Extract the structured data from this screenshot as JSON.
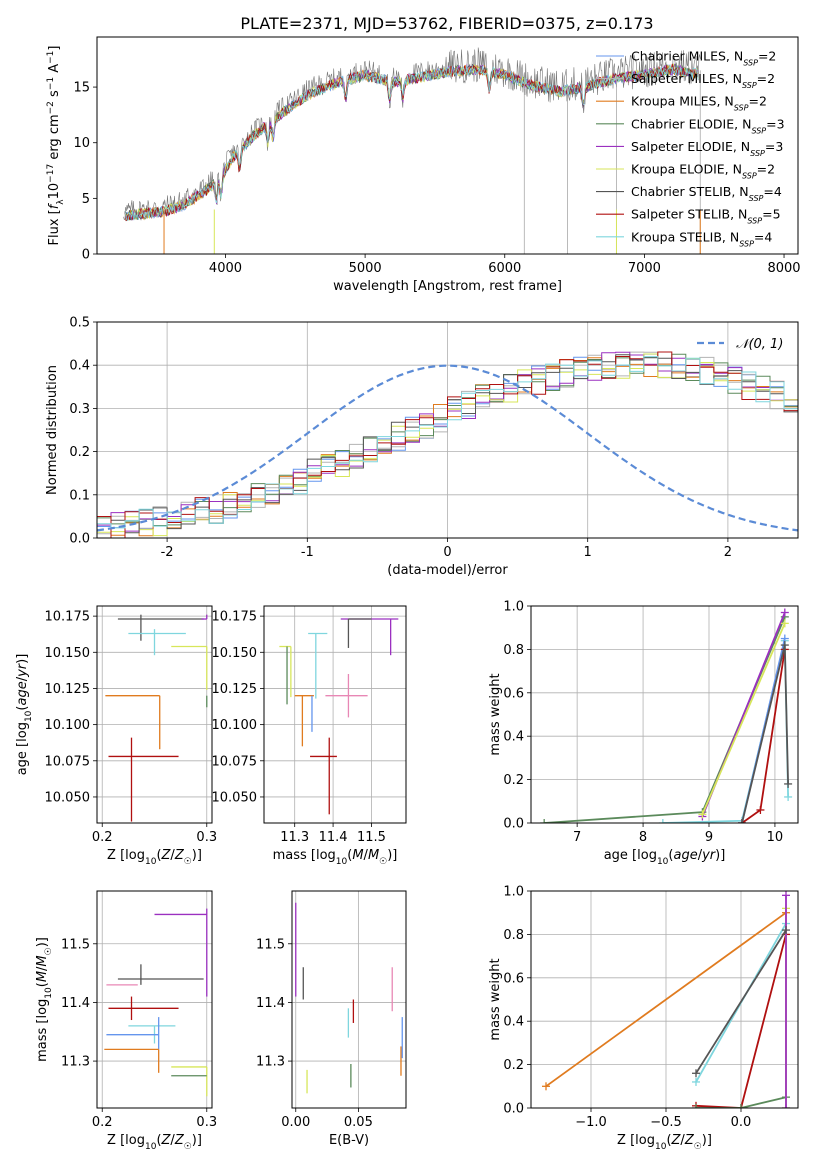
{
  "figure": {
    "title": "PLATE=2371, MJD=53762, FIBERID=0375, z=0.173"
  },
  "model_colors": {
    "Chabrier MILES": "#6495ed",
    "Salpeter MILES": "#b3b3b3",
    "Kroupa MILES": "#e07b1f",
    "Chabrier ELODIE": "#5b8a5b",
    "Salpeter ELODIE": "#9b30c0",
    "Kroupa ELODIE": "#d7e65a",
    "Chabrier STELIB": "#555555",
    "Salpeter STELIB": "#b01010",
    "Kroupa STELIB": "#7fd6de",
    "pink_extra": "#e887b5",
    "normal_curve": "#5b8bd6"
  },
  "chart_data": [
    {
      "id": "spectrum",
      "type": "line",
      "xlabel": "wavelength [Angstrom, rest frame]",
      "ylabel": "Flux [f_λ 10^-17 erg cm^-2 s^-1 A^-1]",
      "xlim": [
        3080,
        8100
      ],
      "ylim": [
        0,
        19.5
      ],
      "xticks": [
        4000,
        5000,
        6000,
        7000,
        8000
      ],
      "yticks": [
        0,
        5,
        10,
        15
      ],
      "grid": false,
      "legend_position": "upper-right",
      "continuum_points": {
        "x": [
          3270,
          3400,
          3550,
          3700,
          3850,
          3950,
          4050,
          4200,
          4400,
          4600,
          4800,
          5000,
          5200,
          5400,
          5600,
          5800,
          6000,
          6200,
          6400,
          6600,
          6800,
          7000,
          7200,
          7400
        ],
        "y": [
          3.8,
          4.0,
          4.2,
          4.8,
          6.0,
          7.0,
          9.0,
          11.0,
          13.0,
          14.8,
          15.8,
          16.5,
          15.8,
          16.3,
          16.8,
          17.0,
          16.5,
          15.5,
          15.0,
          15.5,
          16.2,
          16.5,
          17.0,
          16.5
        ]
      },
      "series": [
        {
          "name": "Chabrier MILES, N_SSP=2",
          "color_key": "Chabrier MILES"
        },
        {
          "name": "Salpeter MILES, N_SSP=2",
          "color_key": "Salpeter MILES"
        },
        {
          "name": "Kroupa MILES, N_SSP=2",
          "color_key": "Kroupa MILES"
        },
        {
          "name": "Chabrier ELODIE, N_SSP=3",
          "color_key": "Chabrier ELODIE"
        },
        {
          "name": "Salpeter ELODIE, N_SSP=3",
          "color_key": "Salpeter ELODIE"
        },
        {
          "name": "Kroupa ELODIE, N_SSP=2",
          "color_key": "Kroupa ELODIE"
        },
        {
          "name": "Chabrier STELIB, N_SSP=4",
          "color_key": "Chabrier STELIB"
        },
        {
          "name": "Salpeter STELIB, N_SSP=5",
          "color_key": "Salpeter STELIB"
        },
        {
          "name": "Kroupa STELIB, N_SSP=4",
          "color_key": "Kroupa STELIB"
        }
      ],
      "vertical_lines_x": [
        6140,
        6450,
        6800,
        7400
      ]
    },
    {
      "id": "residuals",
      "type": "histogram",
      "xlabel": "(data-model)/error",
      "ylabel": "Normed distribution",
      "xlim": [
        -2.5,
        2.5
      ],
      "ylim": [
        0,
        0.5
      ],
      "xticks": [
        -2,
        -1,
        0,
        1,
        2
      ],
      "yticks": [
        0.0,
        0.1,
        0.2,
        0.3,
        0.4,
        0.5
      ],
      "grid": true,
      "legend": [
        "𝒩(0, 1)"
      ],
      "legend_position": "upper-right",
      "normal_curve": {
        "mean": 0,
        "sigma": 1
      },
      "bin_width": 0.1,
      "bin_start": -2.5,
      "base_shape": [
        0.02,
        0.03,
        0.03,
        0.035,
        0.04,
        0.045,
        0.05,
        0.06,
        0.065,
        0.075,
        0.085,
        0.095,
        0.11,
        0.12,
        0.135,
        0.15,
        0.16,
        0.175,
        0.19,
        0.205,
        0.22,
        0.235,
        0.25,
        0.265,
        0.28,
        0.295,
        0.31,
        0.325,
        0.335,
        0.345,
        0.355,
        0.365,
        0.375,
        0.38,
        0.385,
        0.39,
        0.395,
        0.4,
        0.405,
        0.405,
        0.4,
        0.395,
        0.39,
        0.385,
        0.375,
        0.365,
        0.355,
        0.345,
        0.33,
        0.32,
        0.31,
        0.3,
        0.29,
        0.28,
        0.265,
        0.25,
        0.235,
        0.22,
        0.205,
        0.19,
        0.175,
        0.16,
        0.145,
        0.13,
        0.115,
        0.1,
        0.09,
        0.08,
        0.07,
        0.06,
        0.055,
        0.05,
        0.045,
        0.04,
        0.035,
        0.03,
        0.03,
        0.025,
        0.02,
        0.02
      ]
    },
    {
      "id": "z_vs_age",
      "type": "errorbar",
      "xlabel": "Z [log10(Z/Z☉)]",
      "ylabel": "age  [log10(age/yr)]",
      "xlim": [
        0.195,
        0.305
      ],
      "ylim": [
        10.032,
        10.182
      ],
      "xticks": [
        0.2,
        0.3
      ],
      "yticks": [
        10.05,
        10.075,
        10.1,
        10.125,
        10.15,
        10.175
      ],
      "grid": true,
      "points": [
        {
          "color_key": "Chabrier STELIB",
          "x": 0.237,
          "xerr": [
            0.022,
            0.06
          ],
          "y": 10.173,
          "yerr": [
            0.015,
            0.003
          ]
        },
        {
          "color_key": "Salpeter ELODIE",
          "x": 0.3,
          "xerr": [
            0.005,
            0.0
          ],
          "y": 10.173,
          "yerr": [
            0.0,
            0.003
          ]
        },
        {
          "color_key": "Kroupa STELIB",
          "x": 0.25,
          "xerr": [
            0.025,
            0.03
          ],
          "y": 10.163,
          "yerr": [
            0.015,
            0.003
          ]
        },
        {
          "color_key": "Kroupa ELODIE",
          "x": 0.3,
          "xerr": [
            0.034,
            0.0
          ],
          "y": 10.154,
          "yerr": [
            0.03,
            0.0
          ]
        },
        {
          "color_key": "Chabrier ELODIE",
          "x": 0.3,
          "xerr": [
            0.0,
            0.0
          ],
          "y": 10.12,
          "yerr": [
            0.008,
            0.0
          ]
        },
        {
          "color_key": "Kroupa MILES",
          "x": 0.255,
          "xerr": [
            0.052,
            0.0
          ],
          "y": 10.12,
          "yerr": [
            0.037,
            0.0
          ]
        },
        {
          "color_key": "pink_extra",
          "x": 0.254,
          "xerr": [
            0.0,
            0.0
          ],
          "y": 10.12,
          "yerr": [
            0.0,
            0.0
          ]
        },
        {
          "color_key": "Chabrier MILES",
          "x": 0.254,
          "xerr": [
            0.0,
            0.0
          ],
          "y": 10.12,
          "yerr": [
            0.0,
            0.0
          ]
        },
        {
          "color_key": "Salpeter STELIB",
          "x": 0.228,
          "xerr": [
            0.022,
            0.045
          ],
          "y": 10.078,
          "yerr": [
            0.045,
            0.013
          ]
        }
      ]
    },
    {
      "id": "mass_vs_age",
      "type": "errorbar",
      "xlabel": "mass [log10(M/M☉)]",
      "ylabel": "",
      "xlim": [
        11.22,
        11.59
      ],
      "ylim": [
        10.032,
        10.182
      ],
      "xticks": [
        11.3,
        11.4,
        11.5
      ],
      "xticklabels": [
        "11.3",
        "11.4",
        "11.5"
      ],
      "yticks": [
        10.05,
        10.075,
        10.1,
        10.125,
        10.15,
        10.175
      ],
      "grid": true,
      "points": [
        {
          "color_key": "Salpeter ELODIE",
          "x": 11.55,
          "xerr": [
            0.13,
            0.02
          ],
          "y": 10.173,
          "yerr": [
            0.025,
            0.0
          ]
        },
        {
          "color_key": "Chabrier STELIB",
          "x": 11.44,
          "xerr": [
            0.0,
            0.06
          ],
          "y": 10.173,
          "yerr": [
            0.02,
            0.0
          ]
        },
        {
          "color_key": "Kroupa STELIB",
          "x": 11.355,
          "xerr": [
            0.02,
            0.03
          ],
          "y": 10.163,
          "yerr": [
            0.045,
            0.0
          ]
        },
        {
          "color_key": "Kroupa ELODIE",
          "x": 11.29,
          "xerr": [
            0.03,
            0.0
          ],
          "y": 10.154,
          "yerr": [
            0.035,
            0.0
          ]
        },
        {
          "color_key": "Chabrier ELODIE",
          "x": 11.28,
          "xerr": [
            0.0,
            0.0
          ],
          "y": 10.154,
          "yerr": [
            0.04,
            0.0
          ]
        },
        {
          "color_key": "Kroupa MILES",
          "x": 11.32,
          "xerr": [
            0.02,
            0.03
          ],
          "y": 10.12,
          "yerr": [
            0.035,
            0.0
          ]
        },
        {
          "color_key": "Chabrier MILES",
          "x": 11.345,
          "xerr": [
            0.0,
            0.0
          ],
          "y": 10.12,
          "yerr": [
            0.025,
            0.0
          ]
        },
        {
          "color_key": "pink_extra",
          "x": 11.44,
          "xerr": [
            0.06,
            0.05
          ],
          "y": 10.12,
          "yerr": [
            0.015,
            0.015
          ]
        },
        {
          "color_key": "Salpeter STELIB",
          "x": 11.39,
          "xerr": [
            0.05,
            0.02
          ],
          "y": 10.078,
          "yerr": [
            0.04,
            0.013
          ]
        }
      ]
    },
    {
      "id": "age_weights",
      "type": "line",
      "xlabel": "age  [log10(age/yr)]",
      "ylabel": "mass weight",
      "xlim": [
        6.3,
        10.35
      ],
      "ylim": [
        0,
        1.0
      ],
      "xticks": [
        7,
        8,
        9,
        10
      ],
      "yticks": [
        0.0,
        0.2,
        0.4,
        0.6,
        0.8,
        1.0
      ],
      "grid": true,
      "series": [
        {
          "color_key": "Chabrier ELODIE",
          "x": [
            6.5,
            8.9,
            10.15
          ],
          "y": [
            0.0,
            0.05,
            0.95
          ]
        },
        {
          "color_key": "Salpeter ELODIE",
          "x": [
            8.9,
            10.15
          ],
          "y": [
            0.03,
            0.97
          ]
        },
        {
          "color_key": "Kroupa ELODIE",
          "x": [
            8.9,
            10.15
          ],
          "y": [
            0.04,
            0.92
          ]
        },
        {
          "color_key": "Kroupa STELIB",
          "x": [
            8.3,
            9.5,
            10.15,
            10.2
          ],
          "y": [
            0.0,
            0.01,
            0.84,
            0.12
          ]
        },
        {
          "color_key": "Chabrier MILES",
          "x": [
            9.5,
            10.15
          ],
          "y": [
            0.0,
            0.85
          ]
        },
        {
          "color_key": "Salpeter STELIB",
          "x": [
            9.5,
            9.78,
            10.15
          ],
          "y": [
            0.0,
            0.06,
            0.8
          ]
        },
        {
          "color_key": "Chabrier STELIB",
          "x": [
            9.5,
            10.15,
            10.2
          ],
          "y": [
            0.0,
            0.82,
            0.18
          ]
        }
      ]
    },
    {
      "id": "z_vs_mass",
      "type": "errorbar",
      "xlabel": "Z [log10(Z/Z☉)]",
      "ylabel": "mass [log10(M/M☉)]",
      "xlim": [
        0.195,
        0.305
      ],
      "ylim": [
        11.22,
        11.59
      ],
      "xticks": [
        0.2,
        0.3
      ],
      "yticks": [
        11.3,
        11.4,
        11.5
      ],
      "grid": true,
      "points": [
        {
          "color_key": "Salpeter ELODIE",
          "x": 0.3,
          "xerr": [
            0.05,
            0.0
          ],
          "y": 11.55,
          "yerr": [
            0.14,
            0.01
          ]
        },
        {
          "color_key": "Chabrier STELIB",
          "x": 0.237,
          "xerr": [
            0.022,
            0.06
          ],
          "y": 11.44,
          "yerr": [
            0.01,
            0.025
          ]
        },
        {
          "color_key": "pink_extra",
          "x": 0.234,
          "xerr": [
            0.03,
            0.0
          ],
          "y": 11.43,
          "yerr": [
            0.0,
            0.0
          ]
        },
        {
          "color_key": "Salpeter STELIB",
          "x": 0.228,
          "xerr": [
            0.022,
            0.045
          ],
          "y": 11.39,
          "yerr": [
            0.02,
            0.02
          ]
        },
        {
          "color_key": "Kroupa STELIB",
          "x": 0.25,
          "xerr": [
            0.025,
            0.02
          ],
          "y": 11.36,
          "yerr": [
            0.03,
            0.0
          ]
        },
        {
          "color_key": "Chabrier MILES",
          "x": 0.254,
          "xerr": [
            0.05,
            0.0
          ],
          "y": 11.345,
          "yerr": [
            0.025,
            0.03
          ]
        },
        {
          "color_key": "Kroupa MILES",
          "x": 0.254,
          "xerr": [
            0.052,
            0.0
          ],
          "y": 11.32,
          "yerr": [
            0.04,
            0.0
          ]
        },
        {
          "color_key": "Kroupa ELODIE",
          "x": 0.3,
          "xerr": [
            0.034,
            0.0
          ],
          "y": 11.29,
          "yerr": [
            0.05,
            0.0
          ]
        },
        {
          "color_key": "Chabrier ELODIE",
          "x": 0.3,
          "xerr": [
            0.034,
            0.0
          ],
          "y": 11.275,
          "yerr": [
            0.0,
            0.0
          ]
        }
      ]
    },
    {
      "id": "ebv_vs_mass",
      "type": "errorbar",
      "xlabel": "E(B-V)",
      "ylabel": "",
      "xlim": [
        -0.003,
        0.088
      ],
      "ylim": [
        11.22,
        11.59
      ],
      "xticks": [
        0.0,
        0.05
      ],
      "xticklabels": [
        "0.00",
        "0.05"
      ],
      "yticks": [
        11.3,
        11.4,
        11.5
      ],
      "grid": true,
      "points": [
        {
          "color_key": "Salpeter ELODIE",
          "x": 0.0,
          "xerr": [
            0,
            0
          ],
          "y": 11.49,
          "yerr": [
            0.08,
            0.08
          ]
        },
        {
          "color_key": "Chabrier STELIB",
          "x": 0.006,
          "xerr": [
            0,
            0
          ],
          "y": 11.44,
          "yerr": [
            0.035,
            0.02
          ]
        },
        {
          "color_key": "Kroupa ELODIE",
          "x": 0.009,
          "xerr": [
            0,
            0
          ],
          "y": 11.265,
          "yerr": [
            0.02,
            0.02
          ]
        },
        {
          "color_key": "Kroupa STELIB",
          "x": 0.042,
          "xerr": [
            0,
            0
          ],
          "y": 11.37,
          "yerr": [
            0.03,
            0.02
          ]
        },
        {
          "color_key": "Salpeter STELIB",
          "x": 0.046,
          "xerr": [
            0,
            0
          ],
          "y": 11.385,
          "yerr": [
            0.02,
            0.02
          ]
        },
        {
          "color_key": "Chabrier ELODIE",
          "x": 0.044,
          "xerr": [
            0,
            0
          ],
          "y": 11.275,
          "yerr": [
            0.02,
            0.02
          ]
        },
        {
          "color_key": "pink_extra",
          "x": 0.077,
          "xerr": [
            0,
            0
          ],
          "y": 11.43,
          "yerr": [
            0.045,
            0.03
          ]
        },
        {
          "color_key": "Kroupa MILES",
          "x": 0.084,
          "xerr": [
            0,
            0
          ],
          "y": 11.3,
          "yerr": [
            0.025,
            0.025
          ]
        },
        {
          "color_key": "Chabrier MILES",
          "x": 0.085,
          "xerr": [
            0,
            0
          ],
          "y": 11.34,
          "yerr": [
            0.035,
            0.035
          ]
        }
      ]
    },
    {
      "id": "z_weights",
      "type": "line",
      "xlabel": "Z [log10(Z/Z☉)]",
      "ylabel": "mass weight",
      "xlim": [
        -1.4,
        0.38
      ],
      "ylim": [
        0,
        1.0
      ],
      "xticks": [
        -1.0,
        -0.5,
        0.0
      ],
      "xticklabels": [
        "−1.0",
        "−0.5",
        "0.0"
      ],
      "yticks": [
        0.0,
        0.2,
        0.4,
        0.6,
        0.8,
        1.0
      ],
      "grid": true,
      "series": [
        {
          "color_key": "Kroupa MILES",
          "x": [
            -1.3,
            0.3
          ],
          "y": [
            0.1,
            0.9
          ]
        },
        {
          "color_key": "Kroupa STELIB",
          "x": [
            -0.3,
            0.3
          ],
          "y": [
            0.12,
            0.85
          ]
        },
        {
          "color_key": "Salpeter STELIB",
          "x": [
            -0.3,
            0.0,
            0.3
          ],
          "y": [
            0.01,
            0.0,
            0.8
          ]
        },
        {
          "color_key": "Chabrier ELODIE",
          "x": [
            -0.3,
            0.0,
            0.3
          ],
          "y": [
            0.0,
            0.0,
            0.05
          ]
        },
        {
          "color_key": "Kroupa ELODIE",
          "x": [
            0.3,
            0.3
          ],
          "y": [
            0.0,
            0.92
          ]
        },
        {
          "color_key": "Salpeter ELODIE",
          "x": [
            0.3,
            0.3
          ],
          "y": [
            0.0,
            0.98
          ]
        },
        {
          "color_key": "Chabrier STELIB",
          "x": [
            -0.3,
            0.3
          ],
          "y": [
            0.16,
            0.82
          ]
        }
      ]
    }
  ]
}
